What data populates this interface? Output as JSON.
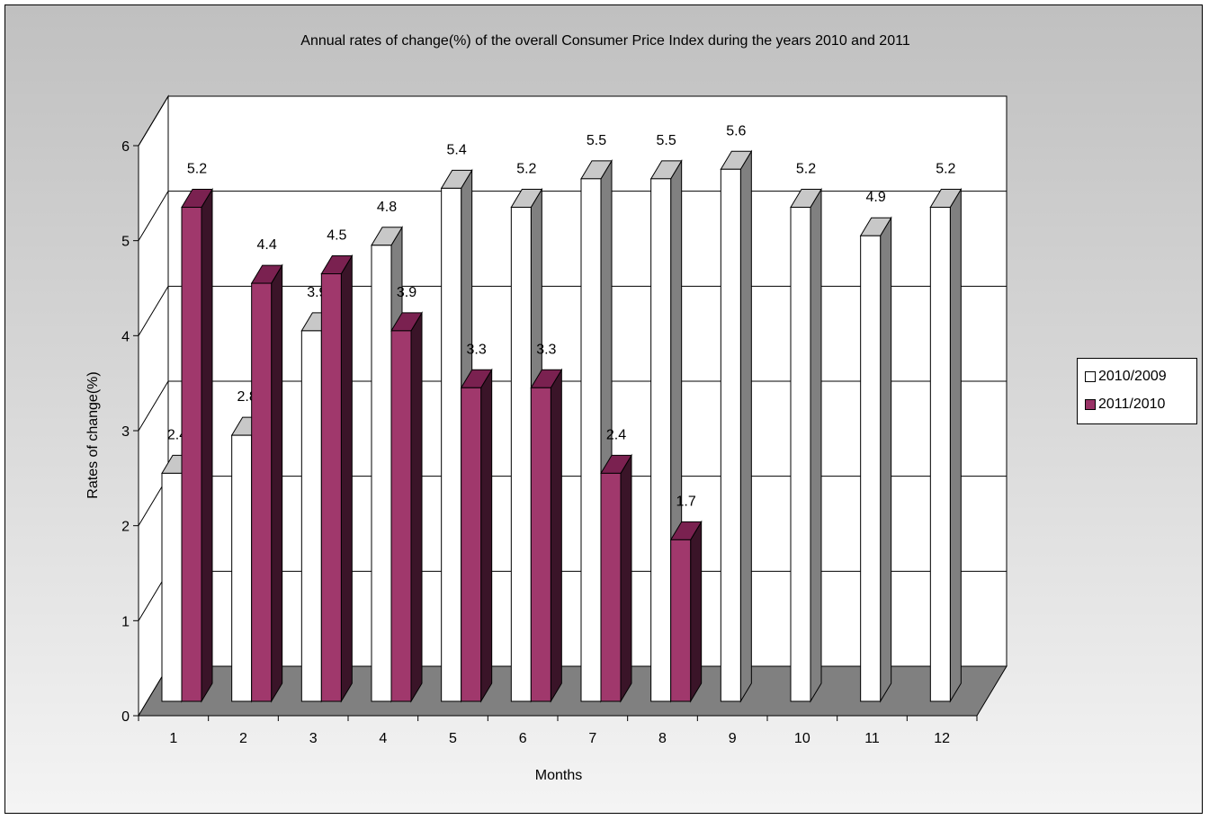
{
  "chart_data": {
    "type": "bar",
    "title": "Annual rates of change(%) of the overall Consumer Price Index during the years 2010 and 2011",
    "xlabel": "Months",
    "ylabel": "Rates of change(%)",
    "categories": [
      "1",
      "2",
      "3",
      "4",
      "5",
      "6",
      "7",
      "8",
      "9",
      "10",
      "11",
      "12"
    ],
    "ylim": [
      0,
      6
    ],
    "yticks": [
      0,
      1,
      2,
      3,
      4,
      5,
      6
    ],
    "grid": true,
    "legend_position": "right",
    "series": [
      {
        "name": "2010/2009",
        "values": [
          2.4,
          2.8,
          3.9,
          4.8,
          5.4,
          5.2,
          5.5,
          5.5,
          5.6,
          5.2,
          4.9,
          5.2
        ],
        "labels": [
          "2.4",
          "2.8",
          "3.9",
          "4.8",
          "5.4",
          "5.2",
          "5.5",
          "5.5",
          "5.6",
          "5.2",
          "4.9",
          "5.2"
        ],
        "color": "#ffffff"
      },
      {
        "name": "2011/2010",
        "values": [
          5.2,
          4.4,
          4.5,
          3.9,
          3.3,
          3.3,
          2.4,
          1.7,
          null,
          null,
          null,
          null
        ],
        "labels": [
          "5.2",
          "4.4",
          "4.5",
          "3.9",
          "3.3",
          "3.3",
          "2.4",
          "1.7",
          null,
          null,
          null,
          null
        ],
        "color": "#993366"
      }
    ]
  }
}
